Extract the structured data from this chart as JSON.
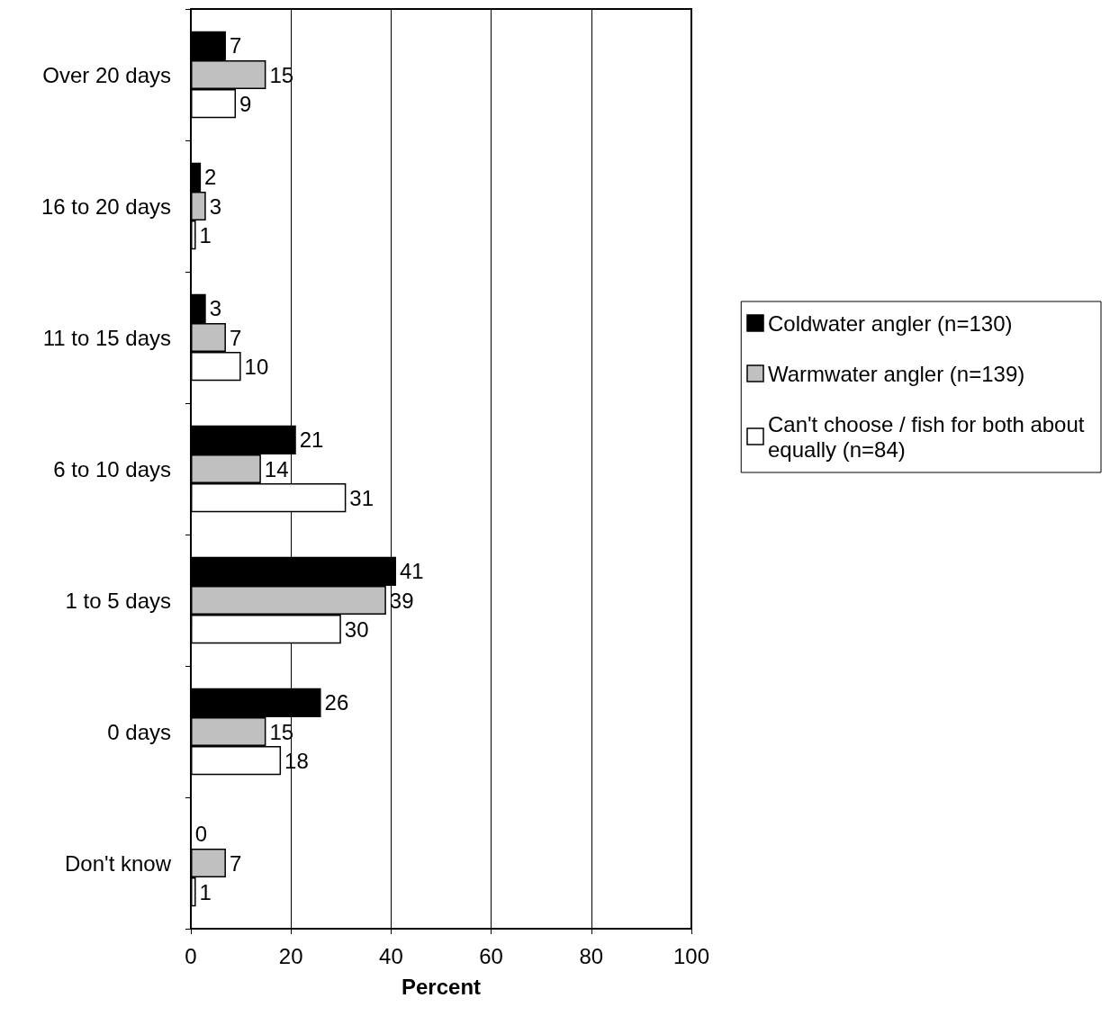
{
  "chart_data": {
    "type": "bar",
    "orientation": "horizontal",
    "xlabel": "Percent",
    "categories": [
      "Over 20 days",
      "16 to 20 days",
      "11 to 15 days",
      "6 to 10 days",
      "1 to 5 days",
      "0 days",
      "Don't know"
    ],
    "series": [
      {
        "name": "Coldwater angler (n=130)",
        "color": "#000000",
        "values": [
          7,
          2,
          3,
          21,
          41,
          26,
          0
        ]
      },
      {
        "name": "Warmwater angler (n=139)",
        "color": "#c0c0c0",
        "values": [
          15,
          3,
          7,
          14,
          39,
          15,
          7
        ]
      },
      {
        "name": "Can't choose / fish for both about equally (n=84)",
        "color": "#ffffff",
        "values": [
          9,
          1,
          10,
          31,
          30,
          18,
          1
        ]
      }
    ],
    "xlim": [
      0,
      100
    ],
    "xticks": [
      0,
      20,
      40,
      60,
      80,
      100
    ],
    "grid": "x",
    "legend": "right",
    "data_labels": true
  }
}
